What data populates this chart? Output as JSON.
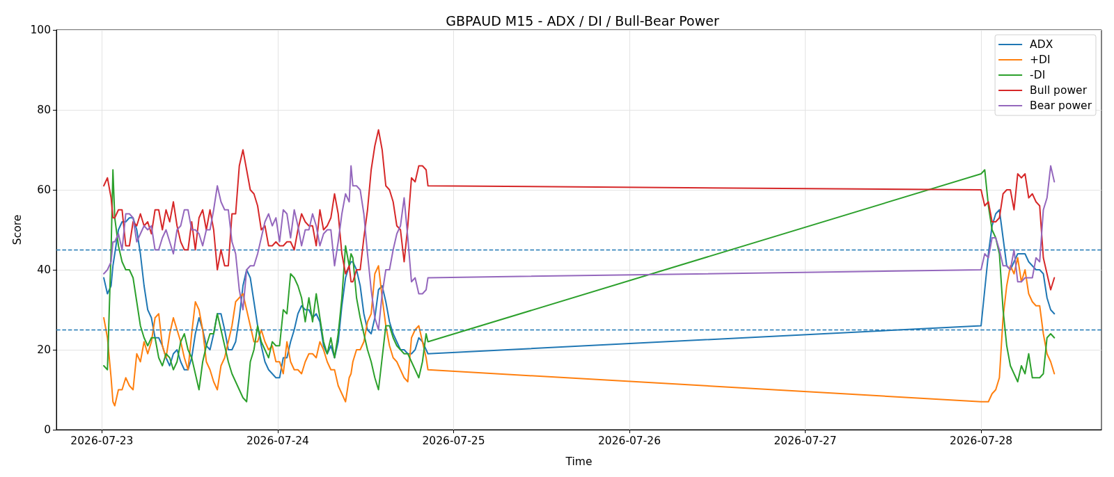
{
  "chart_data": {
    "type": "line",
    "title": "GBPAUD M15 - ADX / DI / Bull-Bear Power",
    "xlabel": "Time",
    "ylabel": "Score",
    "x": [
      "2026-07-23T00:15",
      "2026-07-23T00:45",
      "2026-07-23T01:15",
      "2026-07-23T01:30",
      "2026-07-23T01:45",
      "2026-07-23T02:15",
      "2026-07-23T02:45",
      "2026-07-23T03:15",
      "2026-07-23T03:45",
      "2026-07-23T04:15",
      "2026-07-23T04:45",
      "2026-07-23T05:15",
      "2026-07-23T05:45",
      "2026-07-23T06:15",
      "2026-07-23T06:45",
      "2026-07-23T07:15",
      "2026-07-23T07:45",
      "2026-07-23T08:15",
      "2026-07-23T08:45",
      "2026-07-23T09:15",
      "2026-07-23T09:45",
      "2026-07-23T10:15",
      "2026-07-23T10:45",
      "2026-07-23T11:15",
      "2026-07-23T11:45",
      "2026-07-23T12:15",
      "2026-07-23T12:45",
      "2026-07-23T13:15",
      "2026-07-23T13:45",
      "2026-07-23T14:15",
      "2026-07-23T14:45",
      "2026-07-23T15:15",
      "2026-07-23T15:45",
      "2026-07-23T16:15",
      "2026-07-23T16:45",
      "2026-07-23T17:15",
      "2026-07-23T17:45",
      "2026-07-23T18:15",
      "2026-07-23T18:45",
      "2026-07-23T19:15",
      "2026-07-23T19:45",
      "2026-07-23T20:15",
      "2026-07-23T20:45",
      "2026-07-23T21:15",
      "2026-07-23T21:45",
      "2026-07-23T22:15",
      "2026-07-23T22:45",
      "2026-07-23T23:15",
      "2026-07-23T23:45",
      "2026-07-24T00:15",
      "2026-07-24T00:45",
      "2026-07-24T01:15",
      "2026-07-24T01:45",
      "2026-07-24T02:15",
      "2026-07-24T02:45",
      "2026-07-24T03:15",
      "2026-07-24T03:45",
      "2026-07-24T04:15",
      "2026-07-24T04:45",
      "2026-07-24T05:15",
      "2026-07-24T05:45",
      "2026-07-24T06:15",
      "2026-07-24T06:45",
      "2026-07-24T07:15",
      "2026-07-24T07:45",
      "2026-07-24T08:15",
      "2026-07-24T08:45",
      "2026-07-24T09:15",
      "2026-07-24T09:45",
      "2026-07-24T10:00",
      "2026-07-24T10:15",
      "2026-07-24T10:45",
      "2026-07-24T11:15",
      "2026-07-24T11:45",
      "2026-07-24T12:15",
      "2026-07-24T12:45",
      "2026-07-24T13:15",
      "2026-07-24T13:45",
      "2026-07-24T14:15",
      "2026-07-24T14:45",
      "2026-07-24T15:15",
      "2026-07-24T15:45",
      "2026-07-24T16:15",
      "2026-07-24T16:45",
      "2026-07-24T17:15",
      "2026-07-24T17:45",
      "2026-07-24T18:15",
      "2026-07-24T18:45",
      "2026-07-24T19:15",
      "2026-07-24T19:45",
      "2026-07-24T20:15",
      "2026-07-24T20:30",
      "2026-07-28T00:00",
      "2026-07-28T00:30",
      "2026-07-28T01:00",
      "2026-07-28T01:30",
      "2026-07-28T02:00",
      "2026-07-28T02:30",
      "2026-07-28T03:00",
      "2026-07-28T03:30",
      "2026-07-28T04:00",
      "2026-07-28T04:30",
      "2026-07-28T05:00",
      "2026-07-28T05:30",
      "2026-07-28T06:00",
      "2026-07-28T06:30",
      "2026-07-28T07:00",
      "2026-07-28T07:30",
      "2026-07-28T08:00",
      "2026-07-28T08:30",
      "2026-07-28T09:00",
      "2026-07-28T09:30",
      "2026-07-28T10:00"
    ],
    "series": [
      {
        "name": "ADX",
        "color": "#1f77b4",
        "values": [
          38,
          34,
          36,
          41,
          44,
          50,
          52,
          52,
          53,
          53,
          50,
          44,
          36,
          30,
          28,
          23,
          23,
          21,
          18,
          16,
          19,
          20,
          17,
          15,
          15,
          18,
          24,
          28,
          25,
          21,
          20,
          24,
          29,
          29,
          25,
          20,
          20,
          22,
          28,
          36,
          40,
          38,
          32,
          26,
          21,
          17,
          15,
          14,
          13,
          13,
          18,
          18,
          22,
          25,
          29,
          31,
          30,
          30,
          28,
          29,
          27,
          21,
          19,
          21,
          18,
          22,
          31,
          38,
          41,
          42,
          42,
          40,
          36,
          29,
          25,
          24,
          28,
          35,
          36,
          32,
          27,
          24,
          22,
          20,
          20,
          19,
          19,
          20,
          23,
          22,
          20,
          19,
          26,
          35,
          44,
          51,
          54,
          55,
          48,
          41,
          40,
          42,
          44,
          44,
          44,
          42,
          41,
          40,
          40,
          39,
          33,
          30,
          29
        ]
      },
      {
        "name": "+DI",
        "color": "#ff7f0e",
        "values": [
          28,
          23,
          13,
          7,
          6,
          10,
          10,
          13,
          11,
          10,
          19,
          17,
          22,
          19,
          22,
          28,
          29,
          21,
          18,
          24,
          28,
          25,
          22,
          18,
          15,
          24,
          32,
          30,
          25,
          17,
          15,
          12,
          10,
          16,
          18,
          22,
          26,
          32,
          33,
          34,
          30,
          26,
          22,
          22,
          25,
          22,
          20,
          21,
          17,
          17,
          14,
          22,
          17,
          15,
          15,
          14,
          17,
          19,
          19,
          18,
          22,
          20,
          17,
          15,
          15,
          11,
          9,
          7,
          13,
          14,
          17,
          20,
          20,
          22,
          27,
          29,
          39,
          41,
          33,
          26,
          21,
          18,
          17,
          15,
          13,
          12,
          23,
          25,
          26,
          22,
          18,
          15,
          7,
          7,
          7,
          9,
          10,
          13,
          28,
          36,
          41,
          39,
          43,
          37,
          40,
          34,
          32,
          31,
          31,
          24,
          19,
          17,
          14
        ]
      },
      {
        "name": "-DI",
        "color": "#2ca02c",
        "values": [
          16,
          15,
          45,
          65,
          53,
          46,
          42,
          40,
          40,
          38,
          32,
          26,
          23,
          21,
          23,
          23,
          18,
          16,
          19,
          18,
          15,
          17,
          22,
          24,
          20,
          18,
          14,
          10,
          17,
          21,
          24,
          24,
          29,
          25,
          21,
          17,
          14,
          12,
          10,
          8,
          7,
          17,
          20,
          26,
          22,
          20,
          18,
          22,
          21,
          21,
          30,
          29,
          39,
          38,
          36,
          33,
          27,
          33,
          27,
          34,
          28,
          22,
          19,
          23,
          18,
          24,
          33,
          46,
          41,
          44,
          43,
          33,
          28,
          24,
          20,
          17,
          13,
          10,
          18,
          26,
          26,
          23,
          21,
          20,
          19,
          19,
          17,
          15,
          13,
          17,
          24,
          22,
          64,
          65,
          56,
          50,
          48,
          44,
          30,
          21,
          16,
          14,
          12,
          16,
          14,
          19,
          13,
          13,
          13,
          14,
          23,
          24,
          23
        ]
      },
      {
        "name": "Bull power",
        "color": "#d62728",
        "values": [
          61,
          63,
          58,
          53,
          53,
          55,
          55,
          46,
          46,
          52,
          51,
          54,
          51,
          52,
          49,
          55,
          55,
          50,
          55,
          52,
          57,
          51,
          47,
          45,
          45,
          52,
          45,
          53,
          55,
          50,
          55,
          50,
          40,
          45,
          41,
          41,
          54,
          54,
          66,
          70,
          65,
          60,
          59,
          56,
          50,
          51,
          46,
          46,
          47,
          46,
          46,
          47,
          47,
          45,
          50,
          54,
          52,
          51,
          51,
          46,
          55,
          50,
          51,
          53,
          59,
          54,
          44,
          39,
          41,
          37,
          37,
          40,
          40,
          48,
          55,
          65,
          71,
          75,
          70,
          61,
          60,
          57,
          51,
          50,
          42,
          51,
          63,
          62,
          66,
          66,
          65,
          61,
          60,
          56,
          57,
          52,
          52,
          53,
          59,
          60,
          60,
          55,
          64,
          63,
          64,
          58,
          59,
          57,
          56,
          43,
          39,
          35,
          38
        ]
      },
      {
        "name": "Bear power",
        "color": "#9467bd",
        "values": [
          39,
          40,
          42,
          47,
          47,
          49,
          45,
          54,
          54,
          53,
          47,
          49,
          51,
          50,
          51,
          45,
          45,
          48,
          50,
          47,
          44,
          50,
          51,
          55,
          55,
          50,
          50,
          49,
          46,
          50,
          50,
          55,
          61,
          57,
          55,
          55,
          47,
          44,
          35,
          30,
          40,
          41,
          41,
          44,
          48,
          52,
          54,
          51,
          53,
          47,
          55,
          54,
          48,
          55,
          51,
          46,
          50,
          50,
          54,
          51,
          46,
          49,
          50,
          50,
          41,
          47,
          54,
          59,
          57,
          66,
          61,
          61,
          60,
          54,
          44,
          35,
          28,
          25,
          34,
          40,
          40,
          45,
          49,
          51,
          58,
          48,
          37,
          38,
          34,
          34,
          35,
          38,
          40,
          44,
          43,
          48,
          48,
          45,
          41,
          41,
          40,
          45,
          37,
          37,
          38,
          38,
          38,
          43,
          42,
          55,
          58,
          66,
          62
        ]
      }
    ],
    "xlim": [
      "2026-07-22T17:47",
      "2026-07-28T16:26"
    ],
    "xticks": [
      "2026-07-23",
      "2026-07-24",
      "2026-07-25",
      "2026-07-26",
      "2026-07-27",
      "2026-07-28"
    ],
    "ylim": [
      0,
      100
    ],
    "yticks": [
      0,
      20,
      40,
      60,
      80,
      100
    ],
    "ref_lines": [
      {
        "axis": "y",
        "value": 45,
        "color": "#1f77b4",
        "line_style": "dashed"
      },
      {
        "axis": "y",
        "value": 25,
        "color": "#1f77b4",
        "line_style": "dashed"
      }
    ],
    "grid": true,
    "legend": "top right"
  }
}
